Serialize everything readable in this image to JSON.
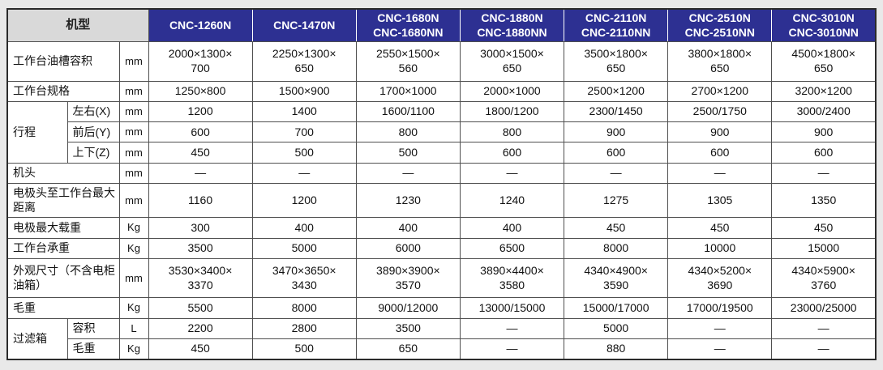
{
  "colors": {
    "header_bg": "#2d3092",
    "header_fg": "#ffffff",
    "model_label_bg": "#d9d9d9",
    "page_bg": "#e9e9e9"
  },
  "table": {
    "model_header": "机型",
    "models": [
      "CNC-1260N",
      "CNC-1470N",
      "CNC-1680N\nCNC-1680NN",
      "CNC-1880N\nCNC-1880NN",
      "CNC-2110N\nCNC-2110NN",
      "CNC-2510N\nCNC-2510NN",
      "CNC-3010N\nCNC-3010NN"
    ],
    "rows": [
      {
        "label": "工作台油槽容积",
        "colspan": 2,
        "unit": "mm",
        "values": [
          "2000×1300×\n700",
          "2250×1300×\n650",
          "2550×1500×\n560",
          "3000×1500×\n650",
          "3500×1800×\n650",
          "3800×1800×\n650",
          "4500×1800×\n650"
        ]
      },
      {
        "label": "工作台规格",
        "colspan": 2,
        "unit": "mm",
        "values": [
          "1250×800",
          "1500×900",
          "1700×1000",
          "2000×1000",
          "2500×1200",
          "2700×1200",
          "3200×1200"
        ]
      },
      {
        "label": "行程",
        "rowspan": 3,
        "sublabel": "左右(X)",
        "unit": "mm",
        "values": [
          "1200",
          "1400",
          "1600/1100",
          "1800/1200",
          "2300/1450",
          "2500/1750",
          "3000/2400"
        ]
      },
      {
        "sublabel": "前后(Y)",
        "unit": "mm",
        "values": [
          "600",
          "700",
          "800",
          "800",
          "900",
          "900",
          "900"
        ]
      },
      {
        "sublabel": "上下(Z)",
        "unit": "mm",
        "values": [
          "450",
          "500",
          "500",
          "600",
          "600",
          "600",
          "600"
        ]
      },
      {
        "label": "机头",
        "colspan": 2,
        "unit": "mm",
        "values": [
          "—",
          "—",
          "—",
          "—",
          "—",
          "—",
          "—"
        ]
      },
      {
        "label": "电极头至工作台最大距离",
        "colspan": 2,
        "unit": "mm",
        "values": [
          "1160",
          "1200",
          "1230",
          "1240",
          "1275",
          "1305",
          "1350"
        ]
      },
      {
        "label": "电极最大载重",
        "colspan": 2,
        "unit": "Kg",
        "values": [
          "300",
          "400",
          "400",
          "400",
          "450",
          "450",
          "450"
        ]
      },
      {
        "label": "工作台承重",
        "colspan": 2,
        "unit": "Kg",
        "values": [
          "3500",
          "5000",
          "6000",
          "6500",
          "8000",
          "10000",
          "15000"
        ]
      },
      {
        "label": "外观尺寸（不含电柜油箱）",
        "colspan": 2,
        "unit": "mm",
        "values": [
          "3530×3400×\n3370",
          "3470×3650×\n3430",
          "3890×3900×\n3570",
          "3890×4400×\n3580",
          "4340×4900×\n3590",
          "4340×5200×\n3690",
          "4340×5900×\n3760"
        ]
      },
      {
        "label": "毛重",
        "colspan": 2,
        "unit": "Kg",
        "values": [
          "5500",
          "8000",
          "9000/12000",
          "13000/15000",
          "15000/17000",
          "17000/19500",
          "23000/25000"
        ]
      },
      {
        "label": "过滤箱",
        "rowspan": 2,
        "sublabel": "容积",
        "unit": "L",
        "values": [
          "2200",
          "2800",
          "3500",
          "—",
          "5000",
          "—",
          "—"
        ]
      },
      {
        "sublabel": "毛重",
        "unit": "Kg",
        "values": [
          "450",
          "500",
          "650",
          "—",
          "880",
          "—",
          "—"
        ]
      }
    ]
  }
}
